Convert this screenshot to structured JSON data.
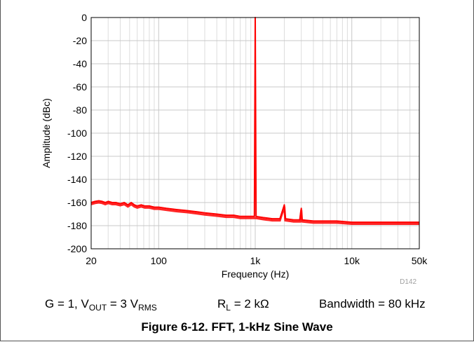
{
  "chart_data": {
    "type": "line",
    "xlabel": "Frequency (Hz)",
    "ylabel": "Amplitude (dBc)",
    "x_scale": "log",
    "xlim": [
      20,
      50000
    ],
    "ylim": [
      -200,
      0
    ],
    "grid": true,
    "x_ticks": [
      {
        "value": 20,
        "label": "20"
      },
      {
        "value": 100,
        "label": "100"
      },
      {
        "value": 1000,
        "label": "1k"
      },
      {
        "value": 10000,
        "label": "10k"
      },
      {
        "value": 50000,
        "label": "50k"
      }
    ],
    "y_ticks": [
      0,
      -20,
      -40,
      -60,
      -80,
      -100,
      -120,
      -140,
      -160,
      -180,
      -200
    ],
    "series": [
      {
        "color": "#ff0000",
        "points": [
          [
            20,
            -160
          ],
          [
            22,
            -159
          ],
          [
            24,
            -158.5
          ],
          [
            26,
            -159
          ],
          [
            28,
            -160
          ],
          [
            30,
            -159
          ],
          [
            33,
            -160
          ],
          [
            36,
            -160
          ],
          [
            40,
            -161
          ],
          [
            44,
            -160
          ],
          [
            48,
            -162
          ],
          [
            52,
            -160
          ],
          [
            56,
            -162
          ],
          [
            60,
            -163
          ],
          [
            66,
            -162
          ],
          [
            72,
            -163
          ],
          [
            80,
            -163
          ],
          [
            90,
            -164
          ],
          [
            100,
            -164
          ],
          [
            120,
            -165
          ],
          [
            150,
            -166
          ],
          [
            200,
            -167
          ],
          [
            250,
            -168
          ],
          [
            300,
            -169
          ],
          [
            400,
            -170
          ],
          [
            500,
            -171
          ],
          [
            600,
            -171
          ],
          [
            700,
            -172
          ],
          [
            800,
            -172
          ],
          [
            900,
            -172
          ],
          [
            980,
            -172
          ],
          [
            1000,
            0
          ],
          [
            1020,
            -172
          ],
          [
            1200,
            -173
          ],
          [
            1500,
            -174
          ],
          [
            1800,
            -174
          ],
          [
            2000,
            -162
          ],
          [
            2050,
            -174
          ],
          [
            2500,
            -175
          ],
          [
            2900,
            -175
          ],
          [
            3000,
            -165
          ],
          [
            3050,
            -175
          ],
          [
            4000,
            -176
          ],
          [
            5000,
            -176
          ],
          [
            7000,
            -176
          ],
          [
            10000,
            -177
          ],
          [
            15000,
            -177
          ],
          [
            20000,
            -177
          ],
          [
            30000,
            -177
          ],
          [
            40000,
            -177
          ],
          [
            50000,
            -177
          ]
        ]
      }
    ]
  },
  "code_label": "D142",
  "conditions": {
    "left_text": "G = 1, V",
    "left_sub1": "OUT",
    "left_mid": " = 3 V",
    "left_sub2": "RMS",
    "rl_text": "R",
    "rl_sub": "L",
    "rl_rest": " = 2 kΩ",
    "bandwidth": "Bandwidth = 80 kHz"
  },
  "caption": "Figure 6-12. FFT, 1-kHz Sine Wave"
}
